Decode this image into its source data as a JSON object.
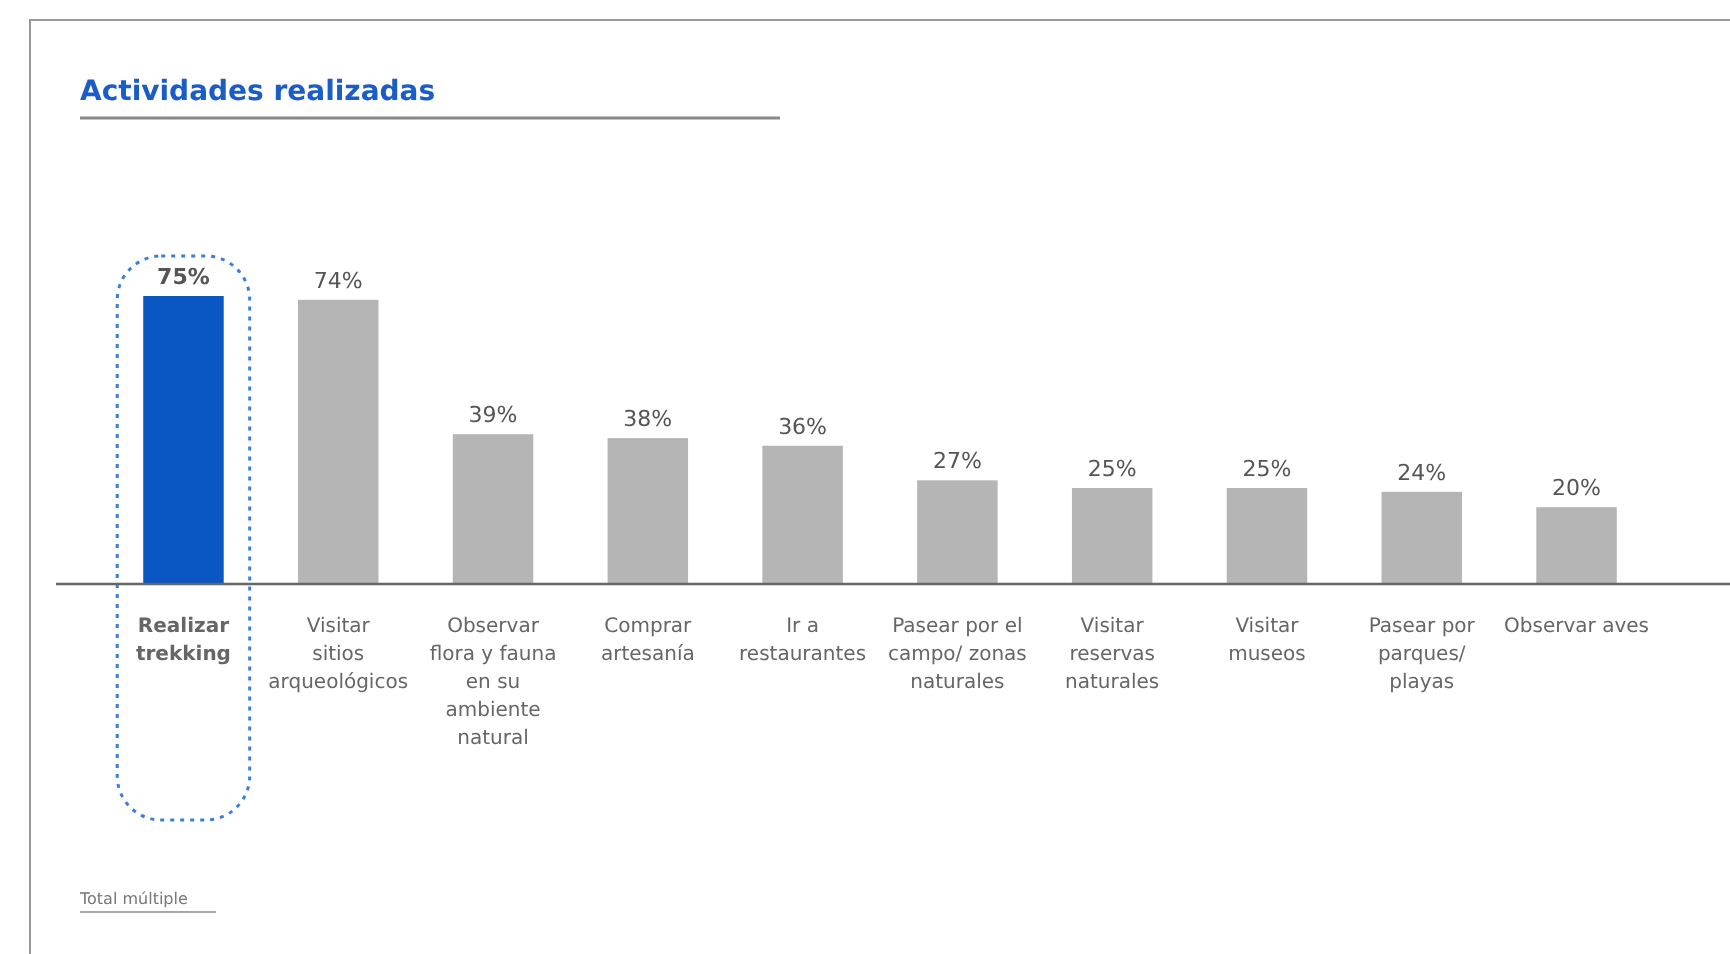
{
  "chart_data": {
    "type": "bar",
    "title": "Actividades realizadas",
    "categories": [
      "Realizar trekking",
      "Visitar sitios arqueológicos",
      "Observar flora y fauna en su ambiente natural",
      "Comprar artesanía",
      "Ir a restaurantes",
      "Pasear por el campo/ zonas naturales",
      "Visitar reservas naturales",
      "Visitar museos",
      "Pasear por parques/ playas",
      "Observar aves"
    ],
    "values": [
      75,
      74,
      39,
      38,
      36,
      27,
      25,
      25,
      24,
      20
    ],
    "colors": [
      "#0a56c2",
      "#b5b5b5",
      "#b5b5b5",
      "#b5b5b5",
      "#b5b5b5",
      "#b5b5b5",
      "#b5b5b5",
      "#b5b5b5",
      "#b5b5b5",
      "#b5b5b5"
    ],
    "value_labels": [
      "75%",
      "74%",
      "39%",
      "38%",
      "36%",
      "27%",
      "25%",
      "25%",
      "24%",
      "20%"
    ],
    "annotations": [
      "Total múltiple"
    ]
  }
}
